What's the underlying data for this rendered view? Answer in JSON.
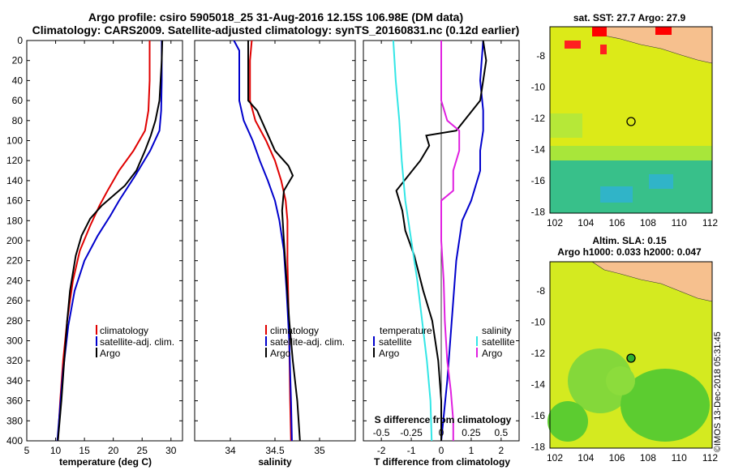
{
  "header": {
    "line1": "Argo profile: csiro 5905018_25 31-Aug-2016 12.15S 106.98E (DM data)",
    "line2": "Climatology: CARS2009. Satellite-adjusted climatology: synTS_20160831.nc (0.12d earlier)"
  },
  "colors": {
    "climatology": "#e00000",
    "satellite": "#0000cc",
    "argo": "#000000",
    "sal_satellite": "#33e6e6",
    "sal_profile": "#e020e0"
  },
  "map_sst": {
    "title": "sat. SST: 27.7 Argo: 27.9",
    "lat_ticks": [
      "-8",
      "-10",
      "-12",
      "-14",
      "-16",
      "-18"
    ],
    "lon_ticks": [
      "102",
      "104",
      "106",
      "108",
      "110",
      "112"
    ]
  },
  "map_sla": {
    "title1": "Altim. SLA: 0.15",
    "title2": "Argo h1000: 0.033 h2000: 0.047",
    "lat_ticks": [
      "-8",
      "-10",
      "-12",
      "-14",
      "-16",
      "-18"
    ],
    "lon_ticks": [
      "102",
      "104",
      "106",
      "108",
      "110",
      "112"
    ]
  },
  "watermark": "©IMOS 13-Dec-2018 05:31:45",
  "chart_data": [
    {
      "type": "line",
      "title": "",
      "xlabel": "temperature (deg C)",
      "ylabel": "",
      "xlim": [
        5,
        32
      ],
      "ylim": [
        400,
        0
      ],
      "xticks": [
        "5",
        "10",
        "15",
        "20",
        "25",
        "30"
      ],
      "yticks": [
        "0",
        "20",
        "40",
        "60",
        "80",
        "100",
        "120",
        "140",
        "160",
        "180",
        "200",
        "220",
        "240",
        "260",
        "280",
        "300",
        "320",
        "340",
        "360",
        "380",
        "400"
      ],
      "legend": [
        "climatology",
        "satellite-adj. clim.",
        "Argo"
      ],
      "series": [
        {
          "name": "climatology",
          "points": [
            [
              26.3,
              0
            ],
            [
              26.3,
              40
            ],
            [
              26.1,
              70
            ],
            [
              25.5,
              90
            ],
            [
              23.5,
              110
            ],
            [
              21,
              130
            ],
            [
              19,
              150
            ],
            [
              17.6,
              165
            ],
            [
              16,
              185
            ],
            [
              14.2,
              210
            ],
            [
              13,
              240
            ],
            [
              12,
              280
            ],
            [
              11.3,
              320
            ],
            [
              10.8,
              360
            ],
            [
              10.4,
              400
            ]
          ]
        },
        {
          "name": "satellite-adj. clim.",
          "points": [
            [
              28.4,
              0
            ],
            [
              28.4,
              40
            ],
            [
              28.3,
              70
            ],
            [
              28,
              90
            ],
            [
              26.4,
              110
            ],
            [
              23.8,
              135
            ],
            [
              21,
              160
            ],
            [
              19.5,
              175
            ],
            [
              17.3,
              195
            ],
            [
              15,
              220
            ],
            [
              13.3,
              250
            ],
            [
              12.2,
              285
            ],
            [
              11.3,
              330
            ],
            [
              10.8,
              365
            ],
            [
              10.3,
              400
            ]
          ]
        },
        {
          "name": "Argo",
          "points": [
            [
              28.5,
              0
            ],
            [
              28.4,
              20
            ],
            [
              28,
              60
            ],
            [
              27.3,
              80
            ],
            [
              26.5,
              95
            ],
            [
              25.5,
              110
            ],
            [
              24,
              130
            ],
            [
              22,
              145
            ],
            [
              20,
              155
            ],
            [
              18,
              165
            ],
            [
              16,
              178
            ],
            [
              14.5,
              195
            ],
            [
              13.5,
              215
            ],
            [
              12.5,
              250
            ],
            [
              12,
              280
            ],
            [
              11.5,
              320
            ],
            [
              11,
              360
            ],
            [
              10.4,
              400
            ]
          ]
        }
      ]
    },
    {
      "type": "line",
      "xlabel": "salinity",
      "xlim": [
        33.6,
        35.4
      ],
      "ylim": [
        400,
        0
      ],
      "xticks": [
        "34",
        "34.5",
        "35"
      ],
      "legend": [
        "climatology",
        "satellite-adj. clim.",
        "Argo"
      ],
      "series": [
        {
          "name": "climatology",
          "points": [
            [
              34.24,
              0
            ],
            [
              34.22,
              20
            ],
            [
              34.22,
              60
            ],
            [
              34.28,
              80
            ],
            [
              34.4,
              100
            ],
            [
              34.5,
              120
            ],
            [
              34.57,
              140
            ],
            [
              34.62,
              160
            ],
            [
              34.64,
              180
            ],
            [
              34.64,
              220
            ],
            [
              34.65,
              260
            ],
            [
              34.66,
              300
            ],
            [
              34.67,
              360
            ],
            [
              34.68,
              400
            ]
          ]
        },
        {
          "name": "satellite-adj. clim.",
          "points": [
            [
              34.04,
              0
            ],
            [
              34.1,
              10
            ],
            [
              34.1,
              60
            ],
            [
              34.15,
              80
            ],
            [
              34.25,
              100
            ],
            [
              34.33,
              120
            ],
            [
              34.42,
              140
            ],
            [
              34.5,
              160
            ],
            [
              34.55,
              180
            ],
            [
              34.6,
              210
            ],
            [
              34.63,
              250
            ],
            [
              34.66,
              300
            ],
            [
              34.68,
              360
            ],
            [
              34.69,
              400
            ]
          ]
        },
        {
          "name": "Argo",
          "points": [
            [
              34.2,
              0
            ],
            [
              34.2,
              40
            ],
            [
              34.2,
              60
            ],
            [
              34.3,
              70
            ],
            [
              34.4,
              90
            ],
            [
              34.5,
              110
            ],
            [
              34.65,
              125
            ],
            [
              34.7,
              135
            ],
            [
              34.6,
              150
            ],
            [
              34.58,
              170
            ],
            [
              34.6,
              200
            ],
            [
              34.63,
              240
            ],
            [
              34.66,
              280
            ],
            [
              34.7,
              320
            ],
            [
              34.75,
              360
            ],
            [
              34.78,
              400
            ]
          ]
        }
      ]
    },
    {
      "type": "line",
      "xlabel": "T difference from climatology",
      "xlabel2": "S difference from climatology",
      "xlim": [
        -2.6,
        2.6
      ],
      "xlim_s": [
        -0.65,
        0.65
      ],
      "ylim": [
        400,
        0
      ],
      "xticks": [
        "-2",
        "-1",
        "0",
        "1",
        "2"
      ],
      "xticks_s": [
        "-0.5",
        "-0.25",
        "0",
        "0.25",
        "0.5"
      ],
      "legend_temp_title": "temperature",
      "legend_sal_title": "salinity",
      "legend_items": [
        "satellite",
        "Argo"
      ],
      "series": [
        {
          "name": "temperature satellite",
          "points": [
            [
              1.4,
              0
            ],
            [
              1.3,
              40
            ],
            [
              1.4,
              70
            ],
            [
              1.4,
              90
            ],
            [
              1.3,
              110
            ],
            [
              1.3,
              130
            ],
            [
              1,
              160
            ],
            [
              0.7,
              180
            ],
            [
              0.5,
              220
            ],
            [
              0.4,
              260
            ],
            [
              0.3,
              300
            ],
            [
              0.2,
              340
            ],
            [
              0.1,
              370
            ],
            [
              0,
              400
            ]
          ]
        },
        {
          "name": "temperature Argo",
          "points": [
            [
              1.4,
              0
            ],
            [
              1.5,
              20
            ],
            [
              1.3,
              60
            ],
            [
              0.5,
              90
            ],
            [
              -0.5,
              95
            ],
            [
              -0.4,
              105
            ],
            [
              -0.7,
              120
            ],
            [
              -1.1,
              135
            ],
            [
              -1.5,
              150
            ],
            [
              -1.3,
              170
            ],
            [
              -1.2,
              190
            ],
            [
              -0.9,
              215
            ],
            [
              -0.6,
              250
            ],
            [
              -0.3,
              280
            ],
            [
              -0.1,
              320
            ],
            [
              0,
              360
            ],
            [
              0,
              400
            ]
          ]
        },
        {
          "name": "salinity satellite",
          "points": [
            [
              -0.4,
              0
            ],
            [
              -0.38,
              40
            ],
            [
              -0.35,
              80
            ],
            [
              -0.33,
              120
            ],
            [
              -0.3,
              160
            ],
            [
              -0.25,
              200
            ],
            [
              -0.2,
              240
            ],
            [
              -0.16,
              280
            ],
            [
              -0.12,
              320
            ],
            [
              -0.09,
              360
            ],
            [
              -0.08,
              400
            ]
          ]
        },
        {
          "name": "salinity Argo",
          "points": [
            [
              0,
              0
            ],
            [
              0,
              30
            ],
            [
              0,
              60
            ],
            [
              0.05,
              80
            ],
            [
              0.15,
              90
            ],
            [
              0.15,
              110
            ],
            [
              0.1,
              130
            ],
            [
              0.1,
              150
            ],
            [
              0,
              160
            ],
            [
              0,
              200
            ],
            [
              0.02,
              240
            ],
            [
              0.03,
              280
            ],
            [
              0.05,
              320
            ],
            [
              0.08,
              350
            ],
            [
              0.1,
              380
            ],
            [
              0.1,
              400
            ]
          ]
        }
      ]
    }
  ]
}
